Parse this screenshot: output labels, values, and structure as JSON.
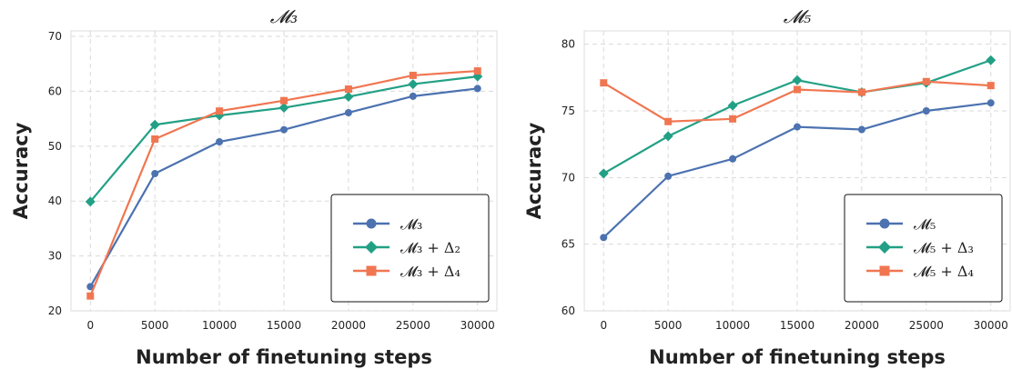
{
  "chart_data": [
    {
      "type": "line",
      "title": "𝓜₃",
      "xlabel": "Number of finetuning steps",
      "ylabel": "Accuracy",
      "x": [
        0,
        5000,
        10000,
        15000,
        20000,
        25000,
        30000
      ],
      "xlim": [
        -1500,
        31500
      ],
      "ylim": [
        20,
        71
      ],
      "yticks": [
        20,
        30,
        40,
        50,
        60,
        70
      ],
      "grid": true,
      "legend_position": "lower-right",
      "series": [
        {
          "name": "𝓜₃",
          "color": "#4c72b0",
          "marker": "circle",
          "values": [
            24.4,
            45.0,
            50.8,
            53.0,
            56.1,
            59.1,
            60.5
          ]
        },
        {
          "name": "𝓜₃ + Δ₂",
          "color": "#22a085",
          "marker": "diamond",
          "values": [
            39.9,
            53.9,
            55.6,
            57.0,
            59.0,
            61.3,
            62.7
          ]
        },
        {
          "name": "𝓜₃ + Δ₄",
          "color": "#f07651",
          "marker": "square",
          "values": [
            22.7,
            51.3,
            56.4,
            58.3,
            60.4,
            62.9,
            63.7
          ]
        }
      ]
    },
    {
      "type": "line",
      "title": "𝓜₅",
      "xlabel": "Number of finetuning steps",
      "ylabel": "Accuracy",
      "x": [
        0,
        5000,
        10000,
        15000,
        20000,
        25000,
        30000
      ],
      "xlim": [
        -1500,
        31500
      ],
      "ylim": [
        60,
        81
      ],
      "yticks": [
        60,
        65,
        70,
        75,
        80
      ],
      "grid": true,
      "legend_position": "lower-right",
      "series": [
        {
          "name": "𝓜₅",
          "color": "#4c72b0",
          "marker": "circle",
          "values": [
            65.5,
            70.1,
            71.4,
            73.8,
            73.6,
            75.0,
            75.6
          ]
        },
        {
          "name": "𝓜₅ + Δ₃",
          "color": "#22a085",
          "marker": "diamond",
          "values": [
            70.3,
            73.1,
            75.4,
            77.3,
            76.4,
            77.1,
            78.8
          ]
        },
        {
          "name": "𝓜₅ + Δ₄",
          "color": "#f07651",
          "marker": "square",
          "values": [
            77.1,
            74.2,
            74.4,
            76.6,
            76.4,
            77.2,
            76.9
          ]
        }
      ]
    }
  ]
}
